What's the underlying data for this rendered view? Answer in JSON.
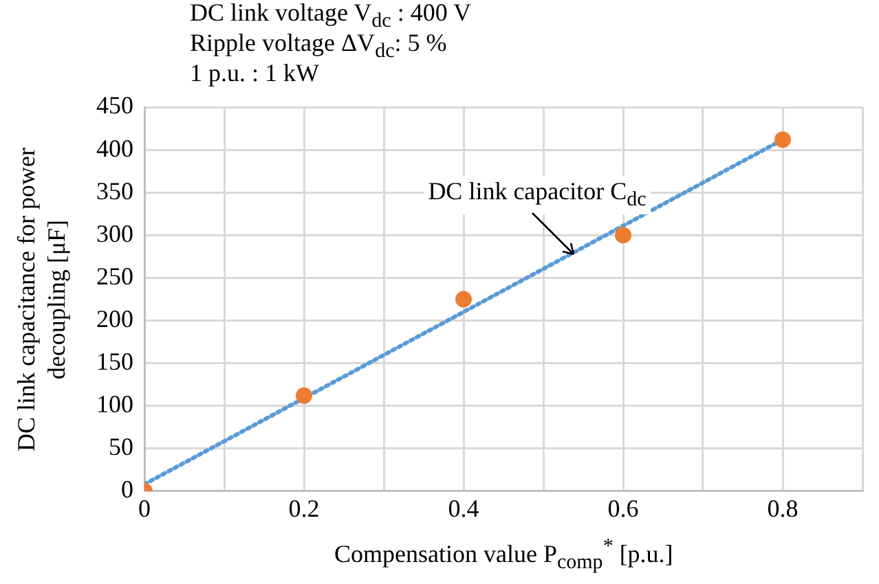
{
  "chart_data": {
    "type": "scatter",
    "xlabel": "Compensation value P$_{comp}$$^{*}$ [p.u.]",
    "ylabel": "DC link capacitance for power decoupling [μF]",
    "annotations": [
      "DC link voltage V$_{dc}$ : 400 V",
      "Ripple voltage ΔV$_{dc}$: 5 %",
      "1 p.u. : 1 kW",
      {
        "text": "DC link capacitor C$_{dc}$",
        "x": 0.54,
        "y": 280
      }
    ],
    "series": [
      {
        "type": "line",
        "x": [
          0,
          0.8
        ],
        "values": [
          8,
          412
        ],
        "color": "#5b9bd5",
        "line_style": "dotted",
        "marker": "none"
      },
      {
        "x": [
          0,
          0.2,
          0.4,
          0.6,
          0.8
        ],
        "values": [
          0,
          112,
          225,
          300,
          412
        ],
        "color": "#ed7d31",
        "marker": "circle"
      }
    ],
    "xlim": [
      0,
      0.9
    ],
    "xticks": [
      0,
      {
        "value": 0.1,
        "label": null
      },
      0.2,
      {
        "value": 0.3,
        "label": null
      },
      0.4,
      {
        "value": 0.5,
        "label": null
      },
      0.6,
      {
        "value": 0.7,
        "label": null
      },
      0.8,
      {
        "value": 0.9,
        "label": null
      }
    ],
    "ylim": [
      0,
      450
    ],
    "yticks": [
      0,
      50,
      100,
      150,
      200,
      250,
      300,
      350,
      400,
      450
    ],
    "grid": true,
    "legend": false
  }
}
